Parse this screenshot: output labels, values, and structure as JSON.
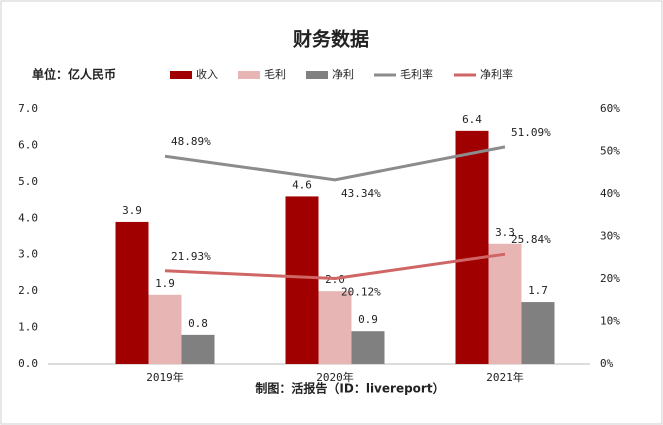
{
  "chart_data": {
    "type": "bar",
    "title": "财务数据",
    "subtitle": "单位：亿人民币",
    "caption": "制图：活报告（ID：livereport）",
    "categories": [
      "2019年",
      "2020年",
      "2021年"
    ],
    "series": [
      {
        "name": "收入",
        "type": "bar",
        "color": "#a00000",
        "values": [
          3.9,
          4.6,
          6.4
        ],
        "value_labels": [
          "3.9",
          "4.6",
          "6.4"
        ]
      },
      {
        "name": "毛利",
        "type": "bar",
        "color": "#e8b5b5",
        "values": [
          1.9,
          2.0,
          3.3
        ],
        "value_labels": [
          "1.9",
          "2.0",
          "3.3"
        ]
      },
      {
        "name": "净利",
        "type": "bar",
        "color": "#808080",
        "values": [
          0.8,
          0.9,
          1.7
        ],
        "value_labels": [
          "0.8",
          "0.9",
          "1.7"
        ]
      },
      {
        "name": "毛利率",
        "type": "line",
        "axis": "y2",
        "color": "#8c8c8c",
        "values": [
          48.89,
          43.34,
          51.09
        ],
        "value_labels": [
          "48.89%",
          "43.34%",
          "51.09%"
        ]
      },
      {
        "name": "净利率",
        "type": "line",
        "axis": "y2",
        "color": "#d06565",
        "values": [
          21.93,
          20.12,
          25.84
        ],
        "value_labels": [
          "21.93%",
          "20.12%",
          "25.84%"
        ]
      }
    ],
    "ylim": [
      0,
      7
    ],
    "yticks": [
      {
        "value": 0,
        "label": "0.0"
      },
      {
        "value": 1,
        "label": "1.0"
      },
      {
        "value": 2,
        "label": "2.0"
      },
      {
        "value": 3,
        "label": "3.0"
      },
      {
        "value": 4,
        "label": "4.0"
      },
      {
        "value": 5,
        "label": "5.0"
      },
      {
        "value": 6,
        "label": "6.0"
      },
      {
        "value": 7,
        "label": "7.0"
      }
    ],
    "y2lim": [
      0,
      60
    ],
    "y2ticks": [
      {
        "value": 0,
        "label": "0%"
      },
      {
        "value": 10,
        "label": "10%"
      },
      {
        "value": 20,
        "label": "20%"
      },
      {
        "value": 30,
        "label": "30%"
      },
      {
        "value": 40,
        "label": "40%"
      },
      {
        "value": 50,
        "label": "50%"
      },
      {
        "value": 60,
        "label": "60%"
      }
    ],
    "legend": "top",
    "grid": false
  }
}
